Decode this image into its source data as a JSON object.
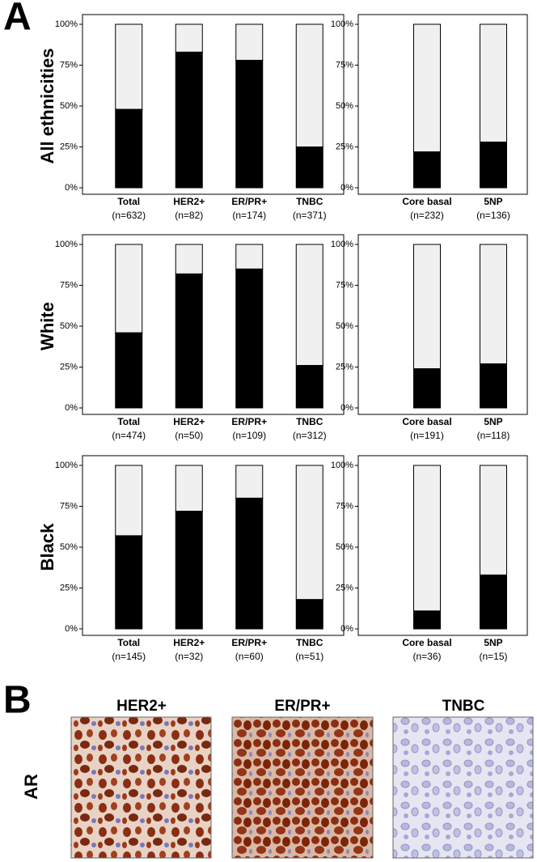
{
  "panel_a": {
    "label": "A",
    "rows": [
      "All ethnicities",
      "White",
      "Black"
    ]
  },
  "chart_data": [
    {
      "type": "bar",
      "stacked": true,
      "categories": [
        "Total",
        "HER2+",
        "ER/PR+",
        "TNBC"
      ],
      "n_labels": [
        "(n=632)",
        "(n=82)",
        "(n=174)",
        "(n=371)"
      ],
      "series": [
        {
          "color": "#000000",
          "values": [
            48,
            83,
            78,
            25
          ]
        },
        {
          "color": "#f0f0f0",
          "values": [
            52,
            17,
            22,
            75
          ]
        }
      ],
      "ylim": [
        0,
        100
      ],
      "yticks": [
        {
          "value": 0,
          "label": "0%"
        },
        {
          "value": 25,
          "label": "25%"
        },
        {
          "value": 50,
          "label": "50%"
        },
        {
          "value": 75,
          "label": "75%"
        },
        {
          "value": 100,
          "label": "100%"
        }
      ]
    },
    {
      "type": "bar",
      "stacked": true,
      "categories": [
        "Core basal",
        "5NP"
      ],
      "n_labels": [
        "(n=232)",
        "(n=136)"
      ],
      "series": [
        {
          "color": "#000000",
          "values": [
            22,
            28
          ]
        },
        {
          "color": "#f0f0f0",
          "values": [
            78,
            72
          ]
        }
      ],
      "ylim": [
        0,
        100
      ],
      "yticks": [
        {
          "value": 0,
          "label": "0%"
        },
        {
          "value": 25,
          "label": "25%"
        },
        {
          "value": 50,
          "label": "50%"
        },
        {
          "value": 75,
          "label": "75%"
        },
        {
          "value": 100,
          "label": "100%"
        }
      ]
    },
    {
      "type": "bar",
      "stacked": true,
      "categories": [
        "Total",
        "HER2+",
        "ER/PR+",
        "TNBC"
      ],
      "n_labels": [
        "(n=474)",
        "(n=50)",
        "(n=109)",
        "(n=312)"
      ],
      "series": [
        {
          "color": "#000000",
          "values": [
            46,
            82,
            85,
            26
          ]
        },
        {
          "color": "#f0f0f0",
          "values": [
            54,
            18,
            15,
            74
          ]
        }
      ],
      "ylim": [
        0,
        100
      ],
      "yticks": [
        {
          "value": 0,
          "label": "0%"
        },
        {
          "value": 25,
          "label": "25%"
        },
        {
          "value": 50,
          "label": "50%"
        },
        {
          "value": 75,
          "label": "75%"
        },
        {
          "value": 100,
          "label": "100%"
        }
      ]
    },
    {
      "type": "bar",
      "stacked": true,
      "categories": [
        "Core basal",
        "5NP"
      ],
      "n_labels": [
        "(n=191)",
        "(n=118)"
      ],
      "series": [
        {
          "color": "#000000",
          "values": [
            24,
            27
          ]
        },
        {
          "color": "#f0f0f0",
          "values": [
            76,
            73
          ]
        }
      ],
      "ylim": [
        0,
        100
      ],
      "yticks": [
        {
          "value": 0,
          "label": "0%"
        },
        {
          "value": 25,
          "label": "25%"
        },
        {
          "value": 50,
          "label": "50%"
        },
        {
          "value": 75,
          "label": "75%"
        },
        {
          "value": 100,
          "label": "100%"
        }
      ]
    },
    {
      "type": "bar",
      "stacked": true,
      "categories": [
        "Total",
        "HER2+",
        "ER/PR+",
        "TNBC"
      ],
      "n_labels": [
        "(n=145)",
        "(n=32)",
        "(n=60)",
        "(n=51)"
      ],
      "series": [
        {
          "color": "#000000",
          "values": [
            57,
            72,
            80,
            18
          ]
        },
        {
          "color": "#f0f0f0",
          "values": [
            43,
            28,
            20,
            82
          ]
        }
      ],
      "ylim": [
        0,
        100
      ],
      "yticks": [
        {
          "value": 0,
          "label": "0%"
        },
        {
          "value": 25,
          "label": "25%"
        },
        {
          "value": 50,
          "label": "50%"
        },
        {
          "value": 75,
          "label": "75%"
        },
        {
          "value": 100,
          "label": "100%"
        }
      ]
    },
    {
      "type": "bar",
      "stacked": true,
      "categories": [
        "Core basal",
        "5NP"
      ],
      "n_labels": [
        "(n=36)",
        "(n=15)"
      ],
      "series": [
        {
          "color": "#000000",
          "values": [
            11,
            33
          ]
        },
        {
          "color": "#f0f0f0",
          "values": [
            89,
            67
          ]
        }
      ],
      "ylim": [
        0,
        100
      ],
      "yticks": [
        {
          "value": 0,
          "label": "0%"
        },
        {
          "value": 25,
          "label": "25%"
        },
        {
          "value": 50,
          "label": "50%"
        },
        {
          "value": 75,
          "label": "75%"
        },
        {
          "value": 100,
          "label": "100%"
        }
      ]
    }
  ],
  "panel_b": {
    "label": "B",
    "row_label": "AR",
    "images": [
      "HER2+",
      "ER/PR+",
      "TNBC"
    ]
  }
}
